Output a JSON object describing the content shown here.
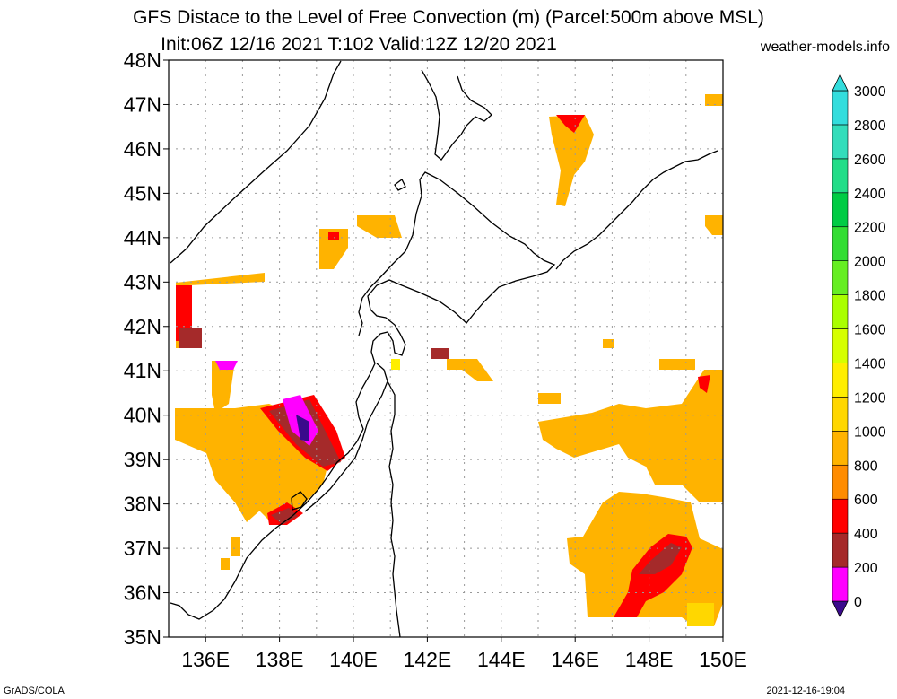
{
  "header": {
    "title_line1": "GFS Distace to the Level of Free Convection (m) (Parcel:500m above MSL)",
    "title_line2": "Init:06Z 12/16 2021 T:102 Valid:12Z 12/20 2021",
    "site": "weather-models.info"
  },
  "footer": {
    "left": "GrADS/COLA",
    "right": "2021-12-16-19:04"
  },
  "axes": {
    "lat_labels": [
      "35N",
      "36N",
      "37N",
      "38N",
      "39N",
      "40N",
      "41N",
      "42N",
      "43N",
      "44N",
      "45N",
      "46N",
      "47N",
      "48N"
    ],
    "lon_labels": [
      "136E",
      "138E",
      "140E",
      "142E",
      "144E",
      "146E",
      "148E",
      "150E"
    ],
    "lat_range": [
      35,
      48
    ],
    "lon_range": [
      135,
      150
    ],
    "grid": true
  },
  "colorbar": {
    "labels": [
      "0",
      "200",
      "400",
      "600",
      "800",
      "1000",
      "1200",
      "1400",
      "1600",
      "1800",
      "2000",
      "2200",
      "2400",
      "2600",
      "2800",
      "3000"
    ],
    "colors": [
      "#3a0a8c",
      "#ff00ff",
      "#a52a2a",
      "#ff0000",
      "#ff8c00",
      "#ffb300",
      "#ffd700",
      "#ffee00",
      "#d6ff00",
      "#aaff00",
      "#66ee22",
      "#33dd33",
      "#00cc44",
      "#22dd88",
      "#33ddbb",
      "#33dddd"
    ]
  },
  "coast_color": "#000000"
}
